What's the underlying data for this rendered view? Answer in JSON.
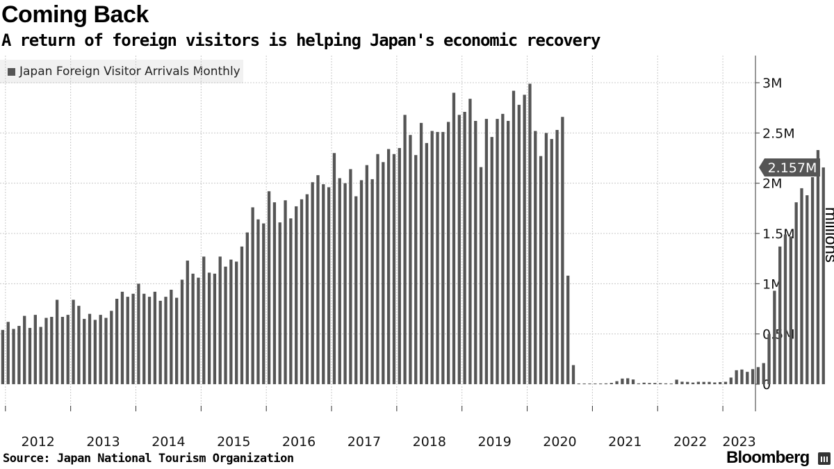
{
  "header": {
    "title": "Coming Back",
    "subtitle": "A return of foreign visitors is helping Japan's economic recovery"
  },
  "footer": {
    "source": "Source: Japan National Tourism Organization",
    "brand": "Bloomberg"
  },
  "colors": {
    "bar": "#555555",
    "grid": "#c8c8c8",
    "callout": "#555555"
  },
  "chart_data": {
    "type": "bar",
    "legend": [
      "Japan Foreign Visitor Arrivals Monthly"
    ],
    "legend_position": "top-left",
    "ylabel": "millions",
    "ylim": [
      -0.27,
      3.27
    ],
    "yticks": [
      {
        "value": 0,
        "label": "0"
      },
      {
        "value": 0.5,
        "label": "0.5M"
      },
      {
        "value": 1,
        "label": "1M"
      },
      {
        "value": 1.5,
        "label": "1.5M"
      },
      {
        "value": 2,
        "label": "2M"
      },
      {
        "value": 2.5,
        "label": "2.5M"
      },
      {
        "value": 3,
        "label": "3M"
      }
    ],
    "grid": true,
    "x_start": "2011-12",
    "x_end": "2023-06",
    "xtick_labels": [
      "2012",
      "2013",
      "2014",
      "2015",
      "2016",
      "2017",
      "2018",
      "2019",
      "2020",
      "2021",
      "2022",
      "2023"
    ],
    "last_value_label": "2.157M",
    "series": [
      {
        "name": "Japan Foreign Visitor Arrivals Monthly",
        "values": [
          0.54,
          0.62,
          0.55,
          0.58,
          0.68,
          0.56,
          0.69,
          0.57,
          0.66,
          0.67,
          0.84,
          0.67,
          0.69,
          0.84,
          0.78,
          0.65,
          0.7,
          0.64,
          0.69,
          0.66,
          0.73,
          0.85,
          0.92,
          0.87,
          0.9,
          1.0,
          0.9,
          0.87,
          0.92,
          0.83,
          0.87,
          0.94,
          0.86,
          1.04,
          1.23,
          1.1,
          1.06,
          1.27,
          1.11,
          1.1,
          1.27,
          1.17,
          1.24,
          1.22,
          1.37,
          1.51,
          1.76,
          1.64,
          1.6,
          1.92,
          1.81,
          1.61,
          1.83,
          1.65,
          1.77,
          1.84,
          1.89,
          2.01,
          2.08,
          1.99,
          1.96,
          2.3,
          2.05,
          2.0,
          2.14,
          1.87,
          2.03,
          2.18,
          2.04,
          2.29,
          2.21,
          2.34,
          2.29,
          2.35,
          2.68,
          2.48,
          2.28,
          2.6,
          2.4,
          2.52,
          2.51,
          2.51,
          2.61,
          2.9,
          2.68,
          2.71,
          2.84,
          2.62,
          2.16,
          2.64,
          2.46,
          2.64,
          2.69,
          2.62,
          2.92,
          2.78,
          2.88,
          2.99,
          2.52,
          2.27,
          2.5,
          2.44,
          2.53,
          2.66,
          1.08,
          0.19,
          0.003,
          0.002,
          0.003,
          0.004,
          0.004,
          0.008,
          0.013,
          0.03,
          0.056,
          0.059,
          0.047,
          0.008,
          0.015,
          0.012,
          0.012,
          0.01,
          0.008,
          0.005,
          0.045,
          0.025,
          0.023,
          0.016,
          0.024,
          0.023,
          0.023,
          0.017,
          0.021,
          0.024,
          0.066,
          0.139,
          0.146,
          0.123,
          0.15,
          0.17,
          0.21,
          0.5,
          0.93,
          1.37,
          1.49,
          1.47,
          1.81,
          1.95,
          1.88,
          2.06,
          2.33,
          2.157
        ]
      }
    ]
  }
}
